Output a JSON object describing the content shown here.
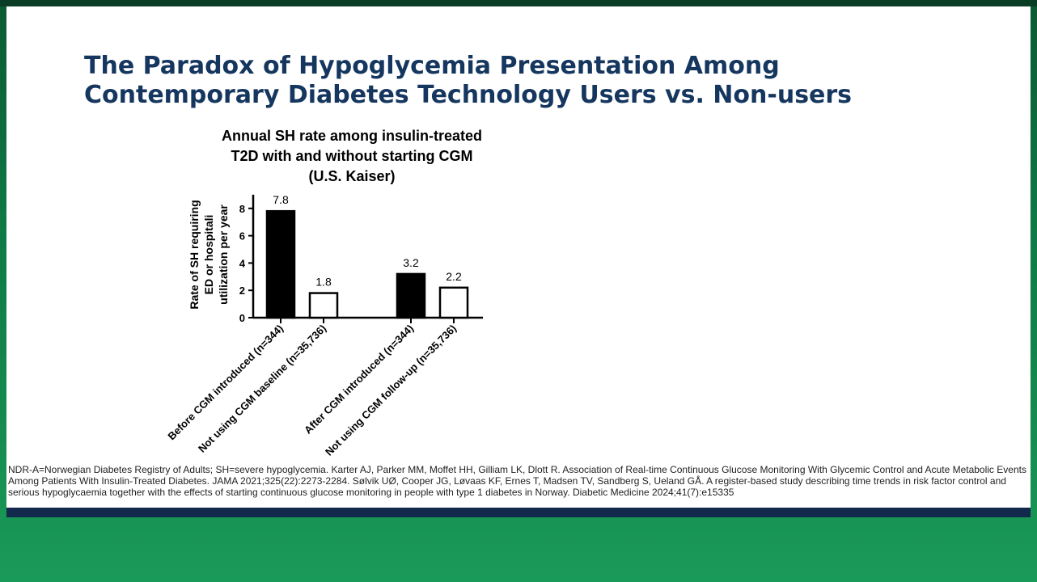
{
  "slide": {
    "title": [
      "The Paradox of Hypoglycemia Presentation Among",
      "Contemporary Diabetes Technology Users vs. Non-users"
    ],
    "footnote": "NDR-A=Norwegian Diabetes Registry of Adults; SH=severe hypoglycemia. Karter AJ, Parker MM, Moffet HH, Gilliam LK, Dlott R. Association of Real-time Continuous Glucose Monitoring With Glycemic Control and Acute Metabolic Events Among Patients With Insulin-Treated Diabetes. JAMA 2021;325(22):2273-2284. Sølvik UØ, Cooper JG, Løvaas KF, Ernes T, Madsen TV, Sandberg S, Ueland GÅ. A register-based study describing time trends in risk factor control and serious hypoglycaemia together with the effects of starting continuous glucose monitoring in people with type 1 diabetes in Norway. Diabetic Medicine 2024;41(7):e15335"
  },
  "chart_data": {
    "type": "bar",
    "title": [
      "Annual SH rate among insulin-treated",
      "T2D with and without starting CGM",
      "(U.S. Kaiser)"
    ],
    "y_label": [
      "Rate of SH requiring",
      "ED or hospitali",
      "utilization per year"
    ],
    "categories": [
      "Before CGM introduced (n=344)",
      "Not using CGM baseline (n=35,736)",
      "After CGM introduced (n=344)",
      "Not using CGM follow-up (n=35,736)"
    ],
    "values": [
      7.8,
      1.8,
      3.2,
      2.2
    ],
    "colors": [
      "#000000",
      "#ffffff",
      "#000000",
      "#ffffff"
    ],
    "ylim": [
      0,
      9
    ],
    "yticks": [
      0,
      2,
      4,
      6,
      8
    ]
  }
}
